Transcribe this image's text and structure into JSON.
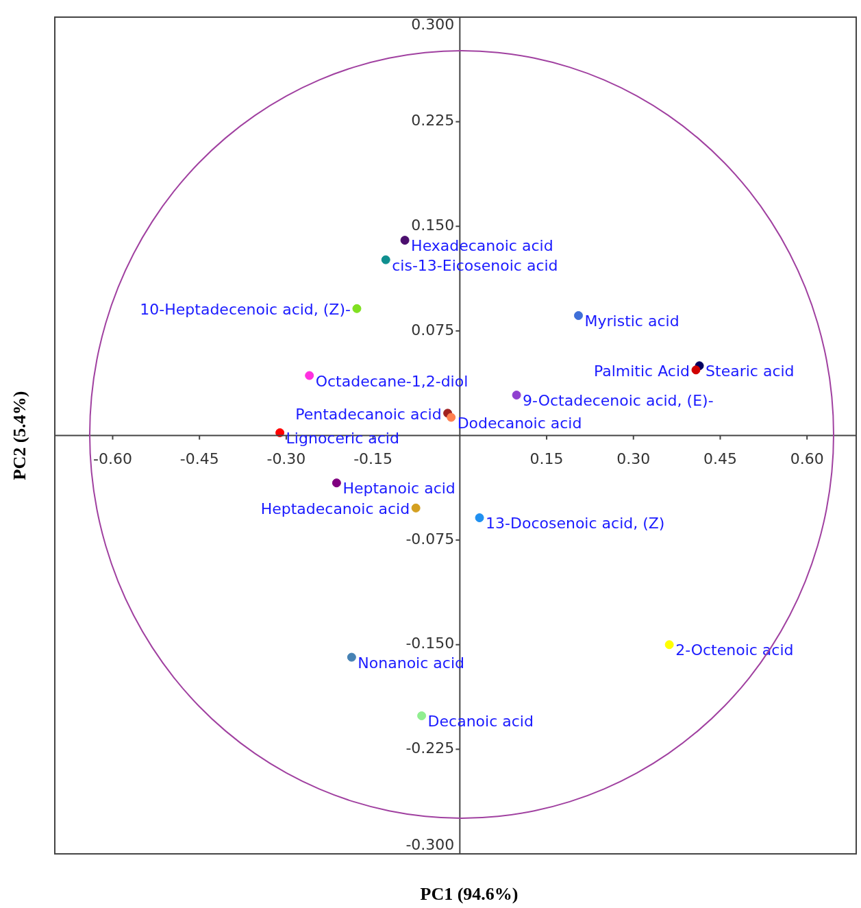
{
  "chart_data": {
    "type": "scatter",
    "xlabel": "PC1 (94.6%)",
    "ylabel": "PC2 (5.4%)",
    "x": [
      -0.095,
      -0.128,
      -0.178,
      0.205,
      0.414,
      0.408,
      -0.26,
      0.098,
      -0.021,
      -0.015,
      -0.311,
      -0.213,
      -0.076,
      0.034,
      0.362,
      -0.187,
      -0.066
    ],
    "values": [
      0.14,
      0.126,
      0.091,
      0.086,
      0.05,
      0.047,
      0.043,
      0.029,
      0.016,
      0.013,
      0.002,
      -0.034,
      -0.052,
      -0.059,
      -0.15,
      -0.159,
      -0.201
    ],
    "colors": [
      "#4b0e6e",
      "#0f8f8f",
      "#80e020",
      "#3f6fd8",
      "#000060",
      "#d00000",
      "#ff30e0",
      "#9040d0",
      "#a02020",
      "#ff7f50",
      "#ff0000",
      "#800080",
      "#d4a020",
      "#2090f0",
      "#ffff00",
      "#4682b4",
      "#90ee90"
    ],
    "marker": "circle",
    "annotations": [
      {
        "text": "Hexadecanoic acid",
        "x": -0.095,
        "y": 0.14
      },
      {
        "text": "cis-13-Eicosenoic acid",
        "x": -0.128,
        "y": 0.126
      },
      {
        "text": "10-Heptadecenoic acid, (Z)-",
        "x": -0.178,
        "y": 0.091
      },
      {
        "text": "Myristic acid",
        "x": 0.205,
        "y": 0.086
      },
      {
        "text": "Stearic acid",
        "x": 0.414,
        "y": 0.05
      },
      {
        "text": "Palmitic Acid",
        "x": 0.408,
        "y": 0.047
      },
      {
        "text": "Octadecane-1,2-diol",
        "x": -0.26,
        "y": 0.043
      },
      {
        "text": "9-Octadecenoic acid, (E)-",
        "x": 0.098,
        "y": 0.029
      },
      {
        "text": "Pentadecanoic acid",
        "x": -0.021,
        "y": 0.016
      },
      {
        "text": "Dodecanoic acid",
        "x": -0.015,
        "y": 0.013
      },
      {
        "text": "Lignoceric acid",
        "x": -0.311,
        "y": 0.002
      },
      {
        "text": "Heptanoic acid",
        "x": -0.213,
        "y": -0.034
      },
      {
        "text": "Heptadecanoic acid",
        "x": -0.076,
        "y": -0.052
      },
      {
        "text": "13-Docosenoic acid, (Z)",
        "x": 0.034,
        "y": -0.059
      },
      {
        "text": "2-Octenoic acid",
        "x": 0.362,
        "y": -0.15
      },
      {
        "text": "Nonanoic acid",
        "x": -0.187,
        "y": -0.159
      },
      {
        "text": "Decanoic acid",
        "x": -0.066,
        "y": -0.201
      }
    ],
    "xlim": [
      -0.7,
      0.685
    ],
    "ylim": [
      -0.3,
      0.3
    ],
    "xticks": [
      {
        "value": -0.6,
        "label": "-0.60"
      },
      {
        "value": -0.45,
        "label": "-0.45"
      },
      {
        "value": -0.3,
        "label": "-0.30"
      },
      {
        "value": -0.15,
        "label": "-0.15"
      },
      {
        "value": 0.15,
        "label": "0.15"
      },
      {
        "value": 0.3,
        "label": "0.30"
      },
      {
        "value": 0.45,
        "label": "0.45"
      },
      {
        "value": 0.6,
        "label": "0.60"
      }
    ],
    "yticks": [
      {
        "value": 0.3,
        "label": "0.300"
      },
      {
        "value": 0.225,
        "label": "0.225"
      },
      {
        "value": 0.15,
        "label": "0.150"
      },
      {
        "value": 0.075,
        "label": "0.075"
      },
      {
        "value": -0.075,
        "label": "-0.075"
      },
      {
        "value": -0.15,
        "label": "-0.150"
      },
      {
        "value": -0.225,
        "label": "-0.225"
      },
      {
        "value": -0.3,
        "label": "-0.300"
      }
    ],
    "legend": false
  }
}
